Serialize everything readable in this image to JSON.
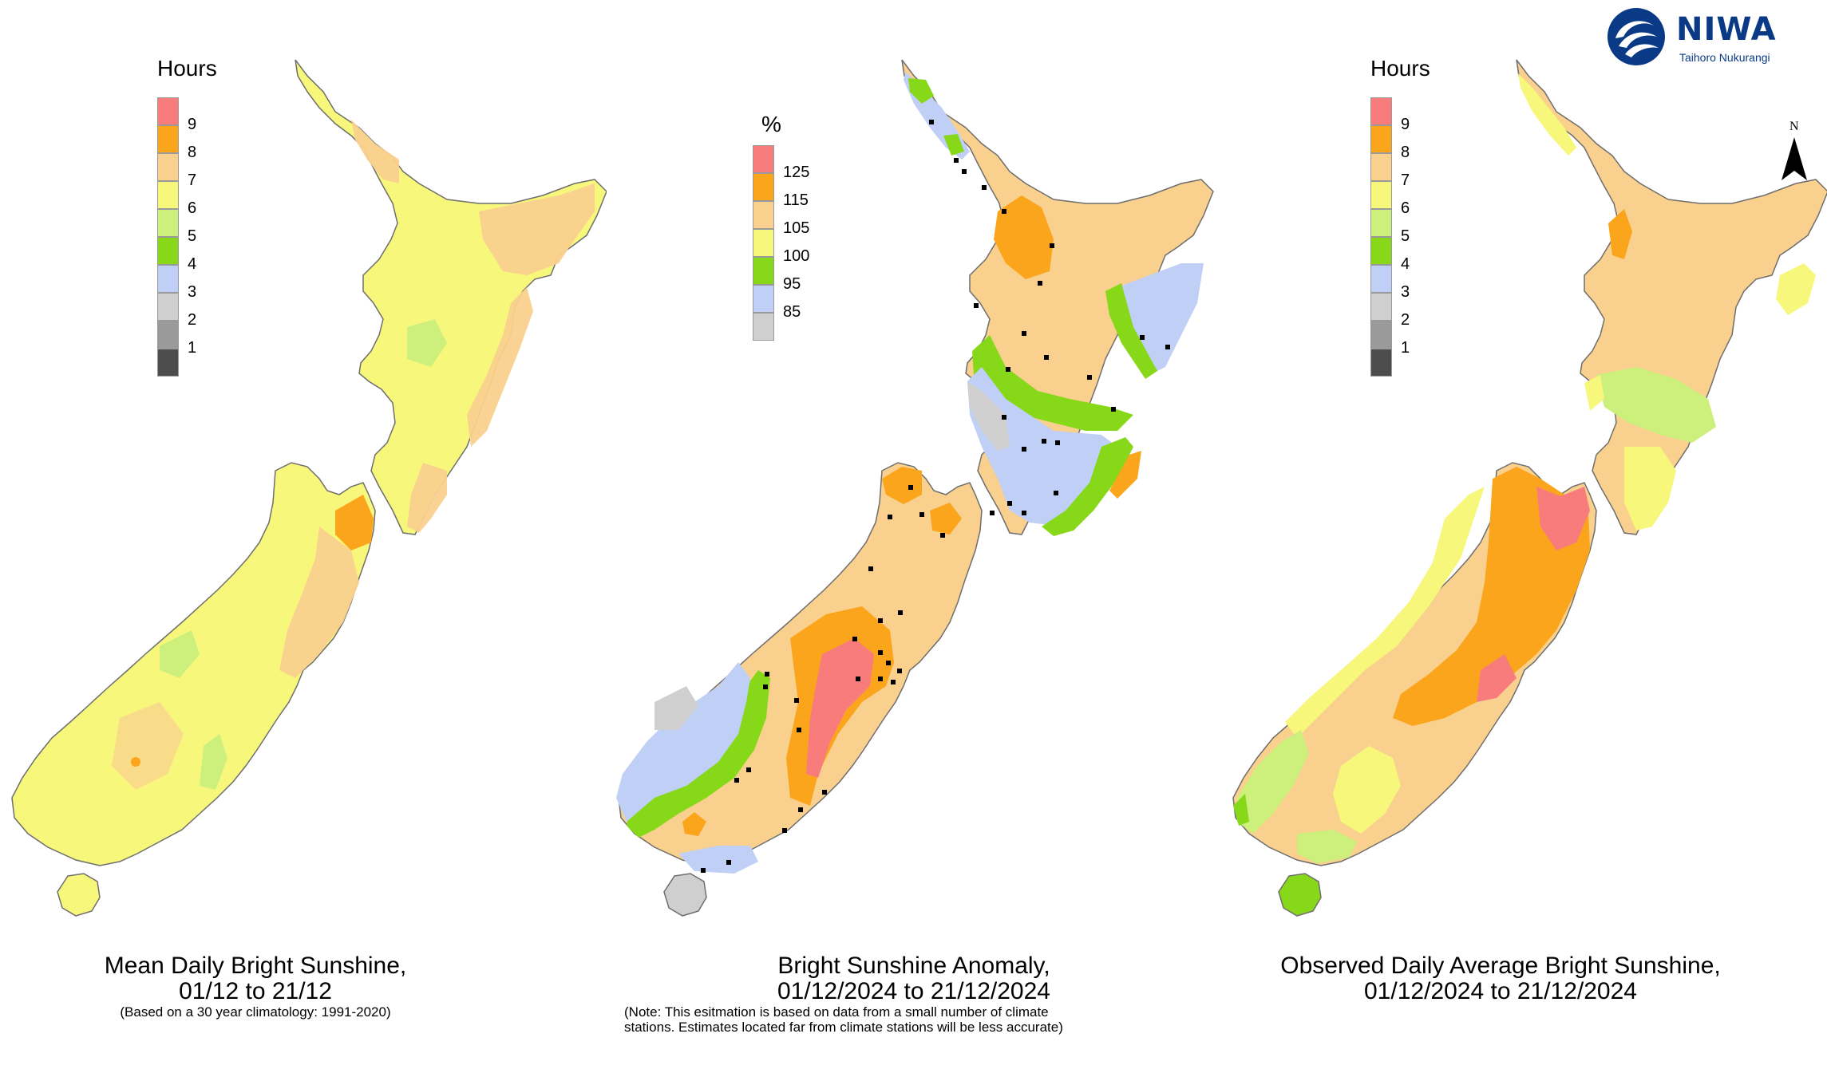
{
  "logo": {
    "word": "NIWA",
    "subtitle": "Taihoro Nukurangi"
  },
  "north_label": "N",
  "colors": {
    "c1": "#4d4d4d",
    "c2": "#9a9a9a",
    "c3": "#cfcfcf",
    "c4": "#bfcff5",
    "c5": "#88d81a",
    "c6": "#cdf07c",
    "c7": "#f7f77c",
    "c8": "#f9d08e",
    "c9": "#faa51c",
    "c10": "#f87c7c",
    "coast": "#6e6e6e",
    "station": "#000000"
  },
  "panels": {
    "mean": {
      "legend": {
        "title": "Hours",
        "ticks": [
          "9",
          "8",
          "7",
          "6",
          "5",
          "4",
          "3",
          "2",
          "1"
        ],
        "swatches": [
          "c10",
          "c9",
          "c8",
          "c7",
          "c6",
          "c5",
          "c4",
          "c3",
          "c2",
          "c1"
        ]
      },
      "map_fill": "c7",
      "map_accents": [
        "c8",
        "c9",
        "c6"
      ],
      "caption_title_1": "Mean Daily Bright Sunshine,",
      "caption_title_2": "01/12 to 21/12",
      "caption_sub": "(Based on a 30 year climatology: 1991-2020)"
    },
    "anomaly": {
      "legend": {
        "title": "%",
        "ticks": [
          "125",
          "115",
          "105",
          "100",
          "95",
          "85"
        ],
        "swatches": [
          "c10",
          "c9",
          "c8",
          "c7",
          "c5",
          "c4",
          "c3"
        ]
      },
      "caption_title_1": "Bright Sunshine Anomaly,",
      "caption_title_2": "01/12/2024 to 21/12/2024",
      "caption_note_1": "(Note: This esitmation is based on data from a small number of climate",
      "caption_note_2": "stations. Estimates located far from climate stations will be less accurate)"
    },
    "observed": {
      "legend": {
        "title": "Hours",
        "ticks": [
          "9",
          "8",
          "7",
          "6",
          "5",
          "4",
          "3",
          "2",
          "1"
        ],
        "swatches": [
          "c10",
          "c9",
          "c8",
          "c7",
          "c6",
          "c5",
          "c4",
          "c3",
          "c2",
          "c1"
        ]
      },
      "caption_title_1": "Observed Daily Average Bright Sunshine,",
      "caption_title_2": "01/12/2024 to 21/12/2024"
    }
  }
}
